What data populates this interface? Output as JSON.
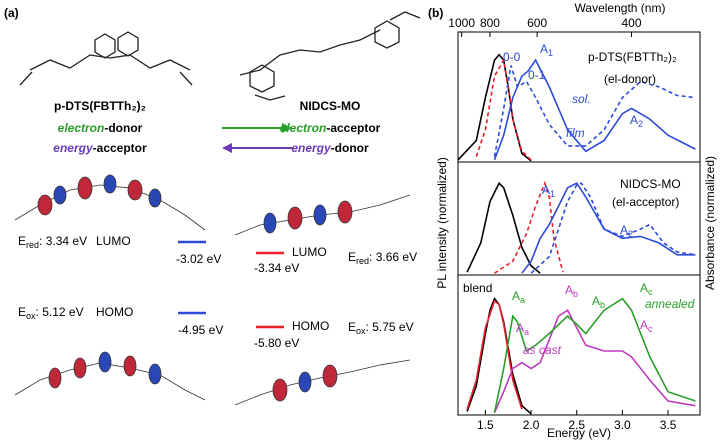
{
  "panel_a": {
    "label": "(a)",
    "donor": "p-DTS(FBTTh₂)₂",
    "acceptor": "NIDCS-MO",
    "roles": [
      {
        "prefix": "electron",
        "suffix": "-donor",
        "color": "#2aa02a"
      },
      {
        "prefix": "electron",
        "suffix": "-acceptor",
        "color": "#2aa02a"
      },
      {
        "prefix": "energy",
        "suffix": "-acceptor",
        "color": "#6a3ab8"
      },
      {
        "prefix": "energy",
        "suffix": "-donor",
        "color": "#6a3ab8"
      }
    ],
    "levels": [
      {
        "symbol": "E",
        "sub": "red",
        "value": ": 3.34 eV",
        "orbital": "LUMO",
        "energy": "-3.02 eV",
        "color": "#2b4bd8"
      },
      {
        "symbol": "E",
        "sub": "red",
        "value": ": 3.66 eV",
        "orbital": "LUMO",
        "energy": "-3.34 eV",
        "color": "#e8202a"
      },
      {
        "symbol": "E",
        "sub": "ox",
        "value": ": 5.12 eV",
        "orbital": "HOMO",
        "energy": "-4.95 eV",
        "color": "#2b4bd8"
      },
      {
        "symbol": "E",
        "sub": "ox",
        "value": ": 5.75 eV",
        "orbital": "HOMO",
        "energy": "-5.80 eV",
        "color": "#e8202a"
      }
    ]
  },
  "panel_b": {
    "label": "(b)",
    "ylabel": "PL intensity (normalized)",
    "y2label": "Absorbance (normalized)"
  },
  "chart_data": [
    {
      "type": "line",
      "xlim": [
        1.2,
        3.85
      ],
      "ylim": [
        0,
        1.1
      ],
      "x2label": "Wavelength (nm)",
      "x2ticks": [
        1000,
        800,
        600,
        400
      ],
      "series": [
        {
          "color": "#000000",
          "dash": false,
          "x": [
            1.2,
            1.4,
            1.5,
            1.6,
            1.65,
            1.7,
            1.75,
            1.8,
            1.9,
            2.0
          ],
          "values": [
            0.02,
            0.2,
            0.6,
            0.95,
            1.0,
            0.95,
            0.7,
            0.4,
            0.08,
            0.01
          ]
        },
        {
          "color": "#e8202a",
          "dash": true,
          "x": [
            1.4,
            1.5,
            1.6,
            1.7,
            1.75,
            1.8,
            1.9,
            2.0
          ],
          "values": [
            0.05,
            0.3,
            0.8,
            0.95,
            0.7,
            0.4,
            0.1,
            0.02
          ]
        },
        {
          "color": "#2b4bd8",
          "dash": true,
          "x": [
            1.6,
            1.7,
            1.78,
            1.85,
            1.95,
            2.05,
            2.2,
            2.4,
            2.6,
            2.8,
            3.0,
            3.2,
            3.4,
            3.6,
            3.8
          ],
          "values": [
            0.05,
            0.5,
            0.9,
            0.7,
            0.75,
            0.6,
            0.35,
            0.15,
            0.15,
            0.3,
            0.6,
            0.75,
            0.7,
            0.62,
            0.6
          ]
        },
        {
          "color": "#2b4bd8",
          "dash": false,
          "x": [
            1.6,
            1.7,
            1.8,
            1.9,
            1.97,
            2.05,
            2.2,
            2.4,
            2.6,
            2.8,
            3.0,
            3.1,
            3.3,
            3.5,
            3.8
          ],
          "values": [
            0.02,
            0.25,
            0.6,
            0.8,
            0.85,
            0.95,
            0.7,
            0.3,
            0.1,
            0.2,
            0.45,
            0.5,
            0.4,
            0.25,
            0.12
          ]
        }
      ],
      "annotations": [
        {
          "text": "0-0",
          "color": "#2b4bd8"
        },
        {
          "text": "0-1",
          "color": "#2b4bd8"
        },
        {
          "text": "A",
          "sub": "1",
          "color": "#2b4bd8"
        },
        {
          "text": "p-DTS(FBTTh₂)₂",
          "color": "#000000"
        },
        {
          "text": "(el-donor)",
          "color": "#000000"
        },
        {
          "text": "sol.",
          "color": "#2b4bd8",
          "style": "italic"
        },
        {
          "text": "film",
          "color": "#2b4bd8",
          "style": "italic"
        },
        {
          "text": "A",
          "sub": "2",
          "color": "#2b4bd8"
        }
      ]
    },
    {
      "type": "line",
      "xlim": [
        1.2,
        3.85
      ],
      "ylim": [
        0,
        1.1
      ],
      "series": [
        {
          "color": "#000000",
          "dash": false,
          "x": [
            1.3,
            1.45,
            1.55,
            1.65,
            1.7,
            1.8,
            1.9,
            2.0,
            2.1
          ],
          "values": [
            0.03,
            0.35,
            0.8,
            1.0,
            0.95,
            0.65,
            0.3,
            0.1,
            0.02
          ]
        },
        {
          "color": "#e8202a",
          "dash": true,
          "x": [
            1.6,
            1.8,
            1.95,
            2.05,
            2.15,
            2.2,
            2.25,
            2.35
          ],
          "values": [
            0.02,
            0.15,
            0.45,
            0.75,
            1.0,
            0.85,
            0.4,
            0.03
          ]
        },
        {
          "color": "#2b4bd8",
          "dash": false,
          "x": [
            1.9,
            2.0,
            2.1,
            2.2,
            2.3,
            2.4,
            2.5,
            2.6,
            2.8,
            3.0,
            3.2,
            3.4,
            3.6,
            3.8
          ],
          "values": [
            0.02,
            0.15,
            0.4,
            0.55,
            0.75,
            0.95,
            1.0,
            0.85,
            0.5,
            0.4,
            0.42,
            0.35,
            0.22,
            0.22
          ]
        },
        {
          "color": "#2b4bd8",
          "dash": true,
          "x": [
            2.0,
            2.2,
            2.3,
            2.4,
            2.5,
            2.55,
            2.65,
            2.8,
            3.0,
            3.2,
            3.3,
            3.45,
            3.6,
            3.8
          ],
          "values": [
            0.02,
            0.2,
            0.5,
            0.8,
            0.98,
            1.0,
            0.85,
            0.5,
            0.42,
            0.5,
            0.55,
            0.35,
            0.25,
            0.22
          ]
        }
      ],
      "annotations": [
        {
          "text": "NIDCS-MO",
          "color": "#000000"
        },
        {
          "text": "(el-acceptor)",
          "color": "#000000"
        },
        {
          "text": "A",
          "sub": "1",
          "color": "#2b4bd8"
        },
        {
          "text": "A",
          "sub": "2",
          "color": "#2b4bd8"
        }
      ]
    },
    {
      "type": "line",
      "xlim": [
        1.2,
        3.85
      ],
      "ylim": [
        0,
        1.1
      ],
      "xlabel": "Energy (eV)",
      "xticks": [
        1.5,
        {
          "value": 2,
          "label": "2.0"
        },
        2.5,
        {
          "value": 3,
          "label": "3.0"
        },
        3.5
      ],
      "series": [
        {
          "color": "#000000",
          "dash": false,
          "x": [
            1.3,
            1.4,
            1.5,
            1.55,
            1.6,
            1.65,
            1.7,
            1.8,
            1.9,
            2.0
          ],
          "values": [
            0.03,
            0.25,
            0.7,
            0.9,
            1.0,
            0.95,
            0.8,
            0.35,
            0.08,
            0.01
          ]
        },
        {
          "color": "#e8202a",
          "dash": false,
          "x": [
            1.3,
            1.4,
            1.5,
            1.6,
            1.65,
            1.7,
            1.8,
            1.9
          ],
          "values": [
            0.05,
            0.3,
            0.75,
            0.98,
            0.95,
            0.78,
            0.3,
            0.05
          ]
        },
        {
          "color": "#c03ac0",
          "dash": false,
          "x": [
            1.6,
            1.7,
            1.8,
            1.9,
            2.0,
            2.1,
            2.2,
            2.3,
            2.4,
            2.5,
            2.6,
            2.8,
            3.0,
            3.1,
            3.3,
            3.5,
            3.8
          ],
          "values": [
            0.02,
            0.2,
            0.4,
            0.45,
            0.4,
            0.45,
            0.65,
            0.85,
            0.9,
            0.75,
            0.6,
            0.55,
            0.55,
            0.5,
            0.3,
            0.12,
            0.08
          ]
        },
        {
          "color": "#2aa02a",
          "dash": false,
          "x": [
            1.6,
            1.7,
            1.8,
            1.85,
            1.95,
            2.05,
            2.2,
            2.4,
            2.5,
            2.6,
            2.8,
            3.0,
            3.1,
            3.3,
            3.5,
            3.8
          ],
          "values": [
            0.02,
            0.4,
            0.85,
            0.8,
            0.55,
            0.6,
            0.7,
            0.85,
            0.78,
            0.7,
            0.9,
            1.0,
            0.9,
            0.5,
            0.2,
            0.12
          ]
        }
      ],
      "annotations": [
        {
          "text": "blend",
          "color": "#000000"
        },
        {
          "text": "A",
          "sub": "a",
          "color": "#2aa02a"
        },
        {
          "text": "A",
          "sub": "a",
          "color": "#c03ac0"
        },
        {
          "text": "A",
          "sub": "b",
          "color": "#c03ac0"
        },
        {
          "text": "A",
          "sub": "b",
          "color": "#2aa02a"
        },
        {
          "text": "A",
          "sub": "c",
          "color": "#2aa02a"
        },
        {
          "text": "A",
          "sub": "c",
          "color": "#c03ac0"
        },
        {
          "text": "annealed",
          "color": "#2aa02a",
          "style": "italic"
        },
        {
          "text": "as cast",
          "color": "#c03ac0",
          "style": "italic"
        }
      ]
    }
  ]
}
